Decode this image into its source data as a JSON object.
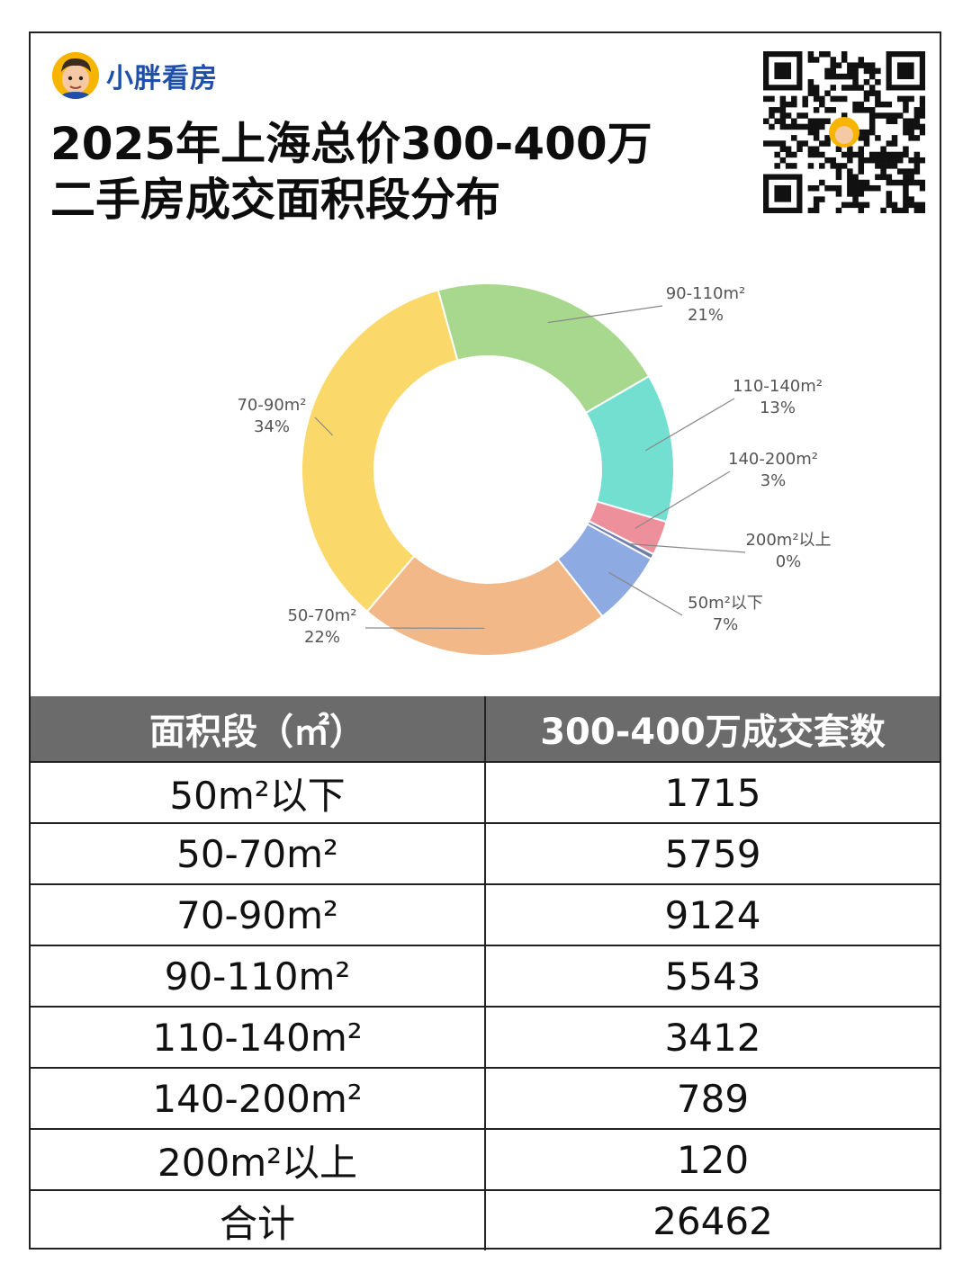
{
  "brand": {
    "name": "小胖看房"
  },
  "title": {
    "line1": "2025年上海总价300-400万",
    "line2": "二手房成交面积段分布"
  },
  "chart_data": {
    "type": "pie",
    "donut": true,
    "slices": [
      {
        "label": "90-110m²",
        "pct_label": "21%",
        "value": 5543,
        "color": "#a8d88e"
      },
      {
        "label": "110-140m²",
        "pct_label": "13%",
        "value": 3412,
        "color": "#73dfd0"
      },
      {
        "label": "140-200m²",
        "pct_label": "3%",
        "value": 789,
        "color": "#ee8f9c"
      },
      {
        "label": "200m²以上",
        "pct_label": "0%",
        "value": 120,
        "color": "#6f7faa"
      },
      {
        "label": "50m²以下",
        "pct_label": "7%",
        "value": 1715,
        "color": "#8eaae3"
      },
      {
        "label": "50-70m²",
        "pct_label": "22%",
        "value": 5759,
        "color": "#f2b887"
      },
      {
        "label": "70-90m²",
        "pct_label": "34%",
        "value": 9124,
        "color": "#fbd86a"
      }
    ]
  },
  "table": {
    "headers": [
      "面积段（㎡）",
      "300-400万成交套数"
    ],
    "rows": [
      {
        "range": "50m²以下",
        "count": "1715"
      },
      {
        "range": "50-70m²",
        "count": "5759"
      },
      {
        "range": "70-90m²",
        "count": "9124"
      },
      {
        "range": "90-110m²",
        "count": "5543"
      },
      {
        "range": "110-140m²",
        "count": "3412"
      },
      {
        "range": "140-200m²",
        "count": "789"
      },
      {
        "range": "200m²以上",
        "count": "120"
      },
      {
        "range": "合计",
        "count": "26462"
      }
    ]
  }
}
